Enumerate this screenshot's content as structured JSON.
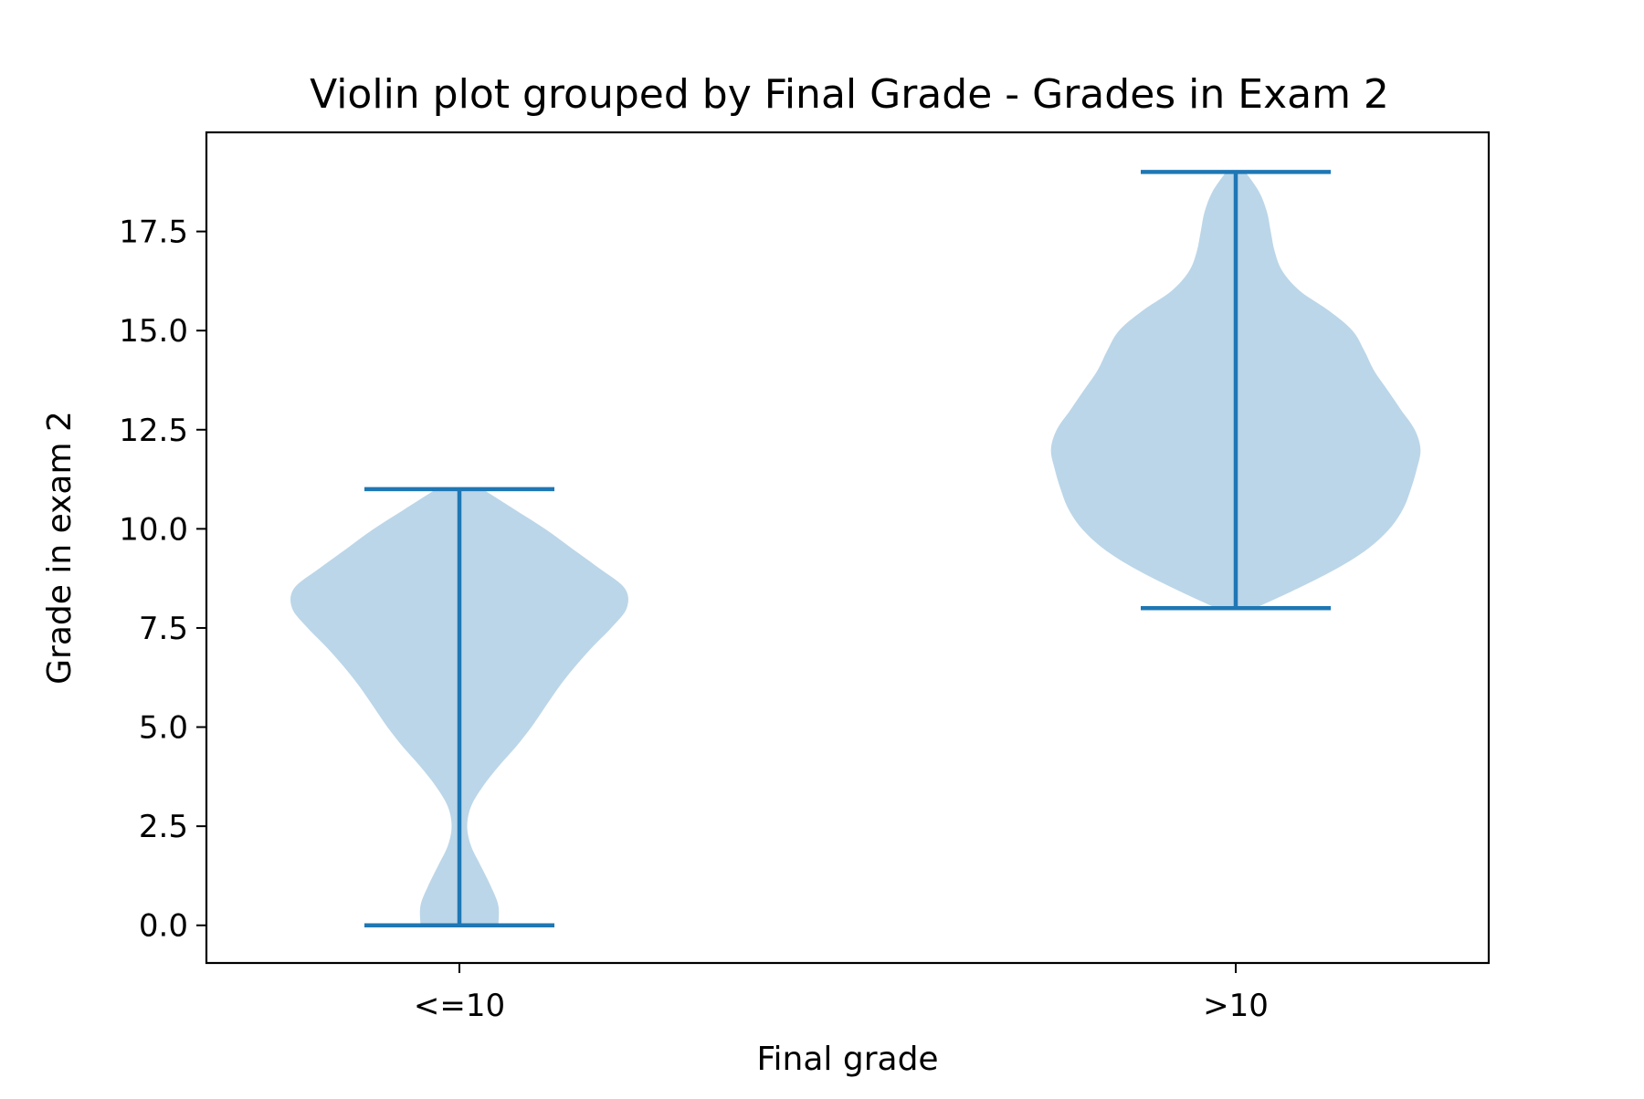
{
  "chart_data": {
    "type": "violin",
    "title": "Violin plot grouped by Final Grade - Grades in Exam 2",
    "xlabel": "Final grade",
    "ylabel": "Grade in exam 2",
    "categories": [
      "<=10",
      ">10"
    ],
    "ylim": [
      -0.95,
      20
    ],
    "yticks": [
      0.0,
      2.5,
      5.0,
      7.5,
      10.0,
      12.5,
      15.0,
      17.5
    ],
    "ytick_labels": [
      "0.0",
      "2.5",
      "5.0",
      "7.5",
      "10.0",
      "12.5",
      "15.0",
      "17.5"
    ],
    "grid": false,
    "colors": {
      "body": "#1f77b4",
      "body_opacity": 0.3,
      "lines": "#1f77b4"
    },
    "violins": [
      {
        "category": "<=10",
        "min": 0,
        "max": 11,
        "density": [
          [
            0,
            0.2
          ],
          [
            0.5,
            0.2
          ],
          [
            1.0,
            0.16
          ],
          [
            1.5,
            0.11
          ],
          [
            2.0,
            0.06
          ],
          [
            2.5,
            0.04
          ],
          [
            3.0,
            0.06
          ],
          [
            3.5,
            0.12
          ],
          [
            4.0,
            0.2
          ],
          [
            4.5,
            0.29
          ],
          [
            5.0,
            0.37
          ],
          [
            5.5,
            0.44
          ],
          [
            6.0,
            0.51
          ],
          [
            6.5,
            0.59
          ],
          [
            7.0,
            0.68
          ],
          [
            7.5,
            0.78
          ],
          [
            8.0,
            0.86
          ],
          [
            8.5,
            0.85
          ],
          [
            9.0,
            0.72
          ],
          [
            9.5,
            0.58
          ],
          [
            10.0,
            0.44
          ],
          [
            10.5,
            0.28
          ],
          [
            11.0,
            0.12
          ]
        ]
      },
      {
        "category": ">10",
        "min": 8,
        "max": 19,
        "density": [
          [
            8.0,
            0.1
          ],
          [
            8.5,
            0.32
          ],
          [
            9.0,
            0.52
          ],
          [
            9.5,
            0.68
          ],
          [
            10.0,
            0.79
          ],
          [
            10.5,
            0.86
          ],
          [
            11.0,
            0.9
          ],
          [
            11.5,
            0.93
          ],
          [
            12.0,
            0.95
          ],
          [
            12.5,
            0.92
          ],
          [
            13.0,
            0.85
          ],
          [
            13.5,
            0.78
          ],
          [
            14.0,
            0.71
          ],
          [
            14.5,
            0.66
          ],
          [
            15.0,
            0.6
          ],
          [
            15.5,
            0.48
          ],
          [
            16.0,
            0.33
          ],
          [
            16.5,
            0.24
          ],
          [
            17.0,
            0.2
          ],
          [
            17.5,
            0.18
          ],
          [
            18.0,
            0.16
          ],
          [
            18.5,
            0.12
          ],
          [
            19.0,
            0.05
          ]
        ]
      }
    ]
  }
}
